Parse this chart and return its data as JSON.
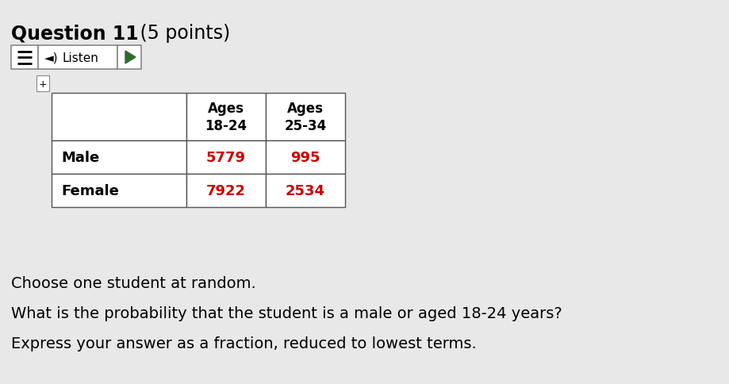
{
  "background_color": "#e8e8e8",
  "title_bold": "Question 11",
  "title_normal": " (5 points)",
  "table_headers": [
    "",
    "Ages\n18-24",
    "Ages\n25-34"
  ],
  "table_rows": [
    [
      "Male",
      "5779",
      "995"
    ],
    [
      "Female",
      "7922",
      "2534"
    ]
  ],
  "red_values": [
    "5779",
    "995",
    "7922",
    "2534"
  ],
  "paragraph_lines": [
    "Choose one student at random.",
    "What is the probability that the student is a male or aged 18-24 years?",
    "Express your answer as a fraction, reduced to lowest terms."
  ],
  "fig_width": 9.19,
  "fig_height": 4.85,
  "dpi": 100
}
